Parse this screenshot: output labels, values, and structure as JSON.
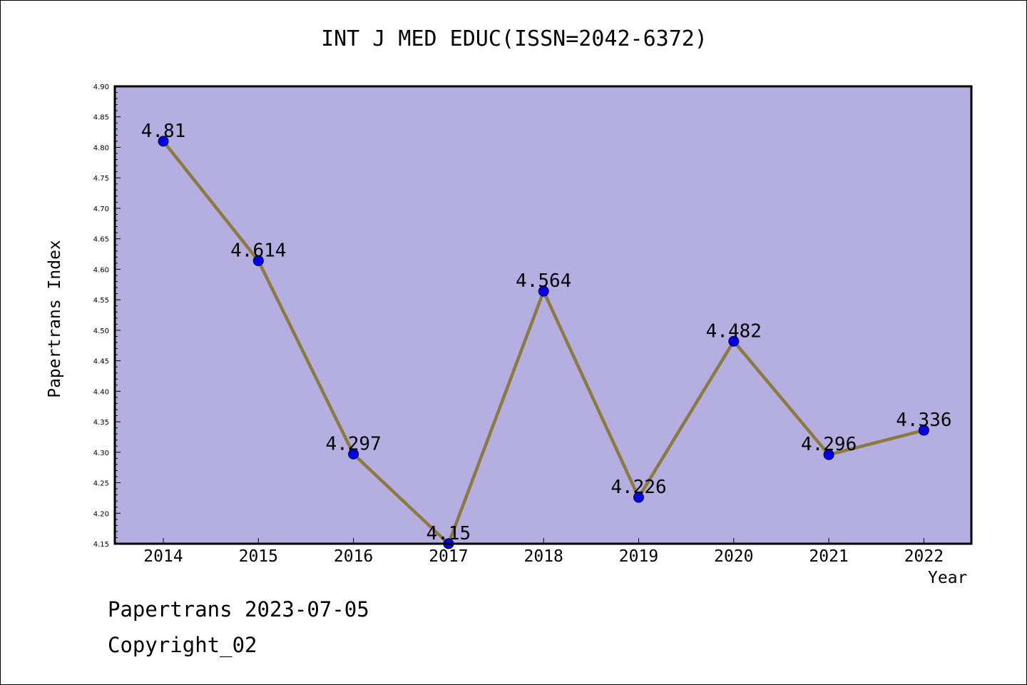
{
  "title": "INT J MED EDUC(ISSN=2042-6372)",
  "footer": {
    "date_line": "Papertrans 2023-07-05",
    "copyright": "Copyright_02"
  },
  "colors": {
    "plot_background": "#b4aee1",
    "line": "#8c7a3e",
    "marker": "#0000ee"
  },
  "chart_data": {
    "type": "line",
    "title": "INT J MED EDUC(ISSN=2042-6372)",
    "xlabel": "Year",
    "ylabel": "Papertrans Index",
    "categories": [
      "2014",
      "2015",
      "2016",
      "2017",
      "2018",
      "2019",
      "2020",
      "2021",
      "2022"
    ],
    "values": [
      4.81,
      4.614,
      4.297,
      4.15,
      4.564,
      4.226,
      4.482,
      4.296,
      4.336
    ],
    "data_labels": [
      "4.81",
      "4.614",
      "4.297",
      "4.15",
      "4.564",
      "4.226",
      "4.482",
      "4.296",
      "4.336"
    ],
    "ylim": [
      4.15,
      4.9
    ],
    "yticks": [
      "4.15",
      "4.20",
      "4.25",
      "4.30",
      "4.35",
      "4.40",
      "4.45",
      "4.50",
      "4.55",
      "4.60",
      "4.65",
      "4.70",
      "4.75",
      "4.80",
      "4.85",
      "4.90"
    ],
    "grid": false,
    "legend": "none"
  }
}
